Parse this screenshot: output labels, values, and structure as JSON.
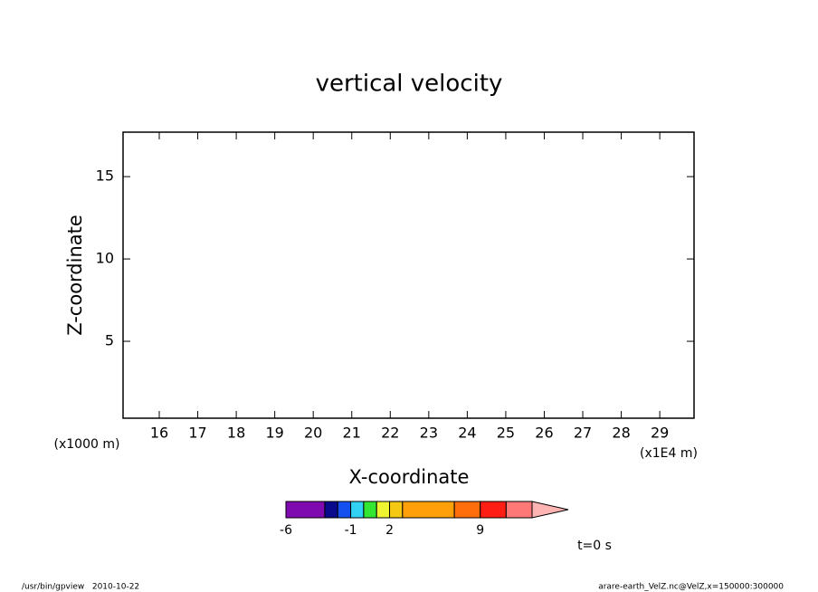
{
  "chart_data": {
    "type": "contour",
    "title": "vertical velocity",
    "xlabel": "X-coordinate",
    "ylabel": "Z-coordinate",
    "xunit": "(x1E4 m)",
    "yunit": "(x1000 m)",
    "xlim": [
      15.06,
      29.89
    ],
    "xticks": [
      16,
      17,
      18,
      19,
      20,
      21,
      22,
      23,
      24,
      25,
      26,
      27,
      28,
      29
    ],
    "ylim": [
      0.33,
      17.7
    ],
    "yticks": [
      5,
      10,
      15
    ],
    "colorbar": {
      "boundaries": [
        -6,
        -3,
        -2,
        -1,
        0,
        1,
        2,
        3,
        7,
        9,
        11,
        13
      ],
      "colors": [
        "#7f0aaf",
        "#0a0a8c",
        "#1450f0",
        "#32d2f5",
        "#32e632",
        "#f0f532",
        "#f5c814",
        "#ffa00a",
        "#ff6e0a",
        "#ff1e14",
        "#ff7878"
      ],
      "extend_color": "#ffb4b4",
      "ticks": [
        -6,
        -1,
        2,
        9
      ]
    },
    "time_label": "t=0 s",
    "footer_left": "/usr/bin/gpview   2010-10-22",
    "footer_right": "arare-earth_VelZ.nc@VelZ,x=150000:300000"
  }
}
